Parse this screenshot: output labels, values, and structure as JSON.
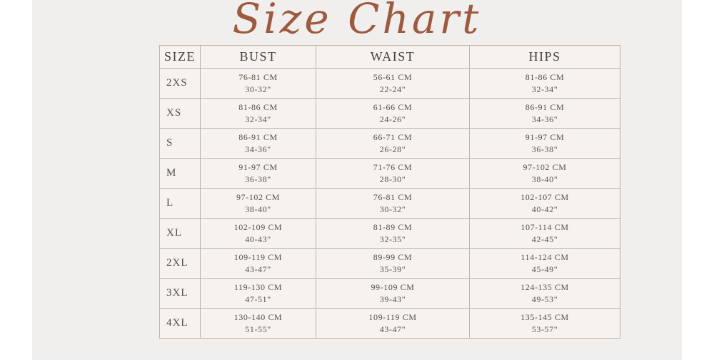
{
  "page": {
    "title": "Size Chart",
    "background_color": "#f1efed",
    "edge_strip_color": "#ffffff",
    "title_color": "#9e5a40",
    "border_color": "#c2b1a4"
  },
  "table": {
    "headers": [
      "SIZE",
      "BUST",
      "WAIST",
      "HIPS"
    ],
    "rows": [
      {
        "size": "2XS",
        "bust_cm": "76-81 CM",
        "bust_in": "30-32\"",
        "waist_cm": "56-61 CM",
        "waist_in": "22-24\"",
        "hips_cm": "81-86 CM",
        "hips_in": "32-34\""
      },
      {
        "size": "XS",
        "bust_cm": "81-86 CM",
        "bust_in": "32-34\"",
        "waist_cm": "61-66 CM",
        "waist_in": "24-26\"",
        "hips_cm": "86-91 CM",
        "hips_in": "34-36\""
      },
      {
        "size": "S",
        "bust_cm": "86-91 CM",
        "bust_in": "34-36\"",
        "waist_cm": "66-71 CM",
        "waist_in": "26-28\"",
        "hips_cm": "91-97 CM",
        "hips_in": "36-38\""
      },
      {
        "size": "M",
        "bust_cm": "91-97 CM",
        "bust_in": "36-38\"",
        "waist_cm": "71-76 CM",
        "waist_in": "28-30\"",
        "hips_cm": "97-102 CM",
        "hips_in": "38-40\""
      },
      {
        "size": "L",
        "bust_cm": "97-102 CM",
        "bust_in": "38-40\"",
        "waist_cm": "76-81 CM",
        "waist_in": "30-32\"",
        "hips_cm": "102-107 CM",
        "hips_in": "40-42\""
      },
      {
        "size": "XL",
        "bust_cm": "102-109 CM",
        "bust_in": "40-43\"",
        "waist_cm": "81-89 CM",
        "waist_in": "32-35\"",
        "hips_cm": "107-114 CM",
        "hips_in": "42-45\""
      },
      {
        "size": "2XL",
        "bust_cm": "109-119 CM",
        "bust_in": "43-47\"",
        "waist_cm": "89-99 CM",
        "waist_in": "35-39\"",
        "hips_cm": "114-124 CM",
        "hips_in": "45-49\""
      },
      {
        "size": "3XL",
        "bust_cm": "119-130 CM",
        "bust_in": "47-51\"",
        "waist_cm": "99-109 CM",
        "waist_in": "39-43\"",
        "hips_cm": "124-135 CM",
        "hips_in": "49-53\""
      },
      {
        "size": "4XL",
        "bust_cm": "130-140 CM",
        "bust_in": "51-55\"",
        "waist_cm": "109-119 CM",
        "waist_in": "43-47\"",
        "hips_cm": "135-145 CM",
        "hips_in": "53-57\""
      }
    ]
  }
}
